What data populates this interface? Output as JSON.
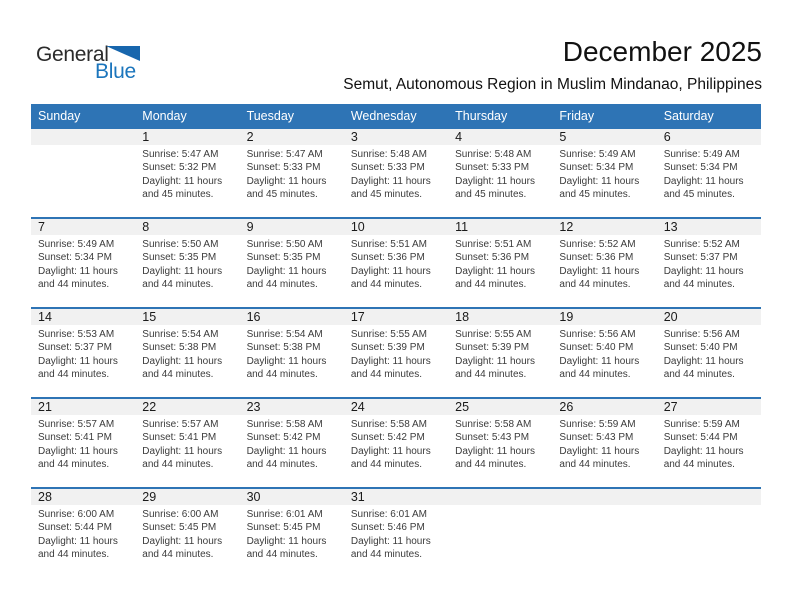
{
  "logo": {
    "text_top": "General",
    "text_bottom": "Blue"
  },
  "header": {
    "month_title": "December 2025",
    "location_subtitle": "Semut, Autonomous Region in Muslim Mindanao, Philippines"
  },
  "colors": {
    "header_blue": "#2e74b5",
    "row_divider_blue": "#2e74b5",
    "day_number_stripe_gray": "#f1f1f1",
    "logo_blue": "#1b75bc",
    "detail_text": "#3b3b3b"
  },
  "calendar": {
    "weekday_headers": [
      "Sunday",
      "Monday",
      "Tuesday",
      "Wednesday",
      "Thursday",
      "Friday",
      "Saturday"
    ],
    "weeks": [
      [
        {
          "day": ""
        },
        {
          "day": "1",
          "sunrise": "Sunrise: 5:47 AM",
          "sunset": "Sunset: 5:32 PM",
          "daylight": "Daylight: 11 hours and 45 minutes."
        },
        {
          "day": "2",
          "sunrise": "Sunrise: 5:47 AM",
          "sunset": "Sunset: 5:33 PM",
          "daylight": "Daylight: 11 hours and 45 minutes."
        },
        {
          "day": "3",
          "sunrise": "Sunrise: 5:48 AM",
          "sunset": "Sunset: 5:33 PM",
          "daylight": "Daylight: 11 hours and 45 minutes."
        },
        {
          "day": "4",
          "sunrise": "Sunrise: 5:48 AM",
          "sunset": "Sunset: 5:33 PM",
          "daylight": "Daylight: 11 hours and 45 minutes."
        },
        {
          "day": "5",
          "sunrise": "Sunrise: 5:49 AM",
          "sunset": "Sunset: 5:34 PM",
          "daylight": "Daylight: 11 hours and 45 minutes."
        },
        {
          "day": "6",
          "sunrise": "Sunrise: 5:49 AM",
          "sunset": "Sunset: 5:34 PM",
          "daylight": "Daylight: 11 hours and 45 minutes."
        }
      ],
      [
        {
          "day": "7",
          "sunrise": "Sunrise: 5:49 AM",
          "sunset": "Sunset: 5:34 PM",
          "daylight": "Daylight: 11 hours and 44 minutes."
        },
        {
          "day": "8",
          "sunrise": "Sunrise: 5:50 AM",
          "sunset": "Sunset: 5:35 PM",
          "daylight": "Daylight: 11 hours and 44 minutes."
        },
        {
          "day": "9",
          "sunrise": "Sunrise: 5:50 AM",
          "sunset": "Sunset: 5:35 PM",
          "daylight": "Daylight: 11 hours and 44 minutes."
        },
        {
          "day": "10",
          "sunrise": "Sunrise: 5:51 AM",
          "sunset": "Sunset: 5:36 PM",
          "daylight": "Daylight: 11 hours and 44 minutes."
        },
        {
          "day": "11",
          "sunrise": "Sunrise: 5:51 AM",
          "sunset": "Sunset: 5:36 PM",
          "daylight": "Daylight: 11 hours and 44 minutes."
        },
        {
          "day": "12",
          "sunrise": "Sunrise: 5:52 AM",
          "sunset": "Sunset: 5:36 PM",
          "daylight": "Daylight: 11 hours and 44 minutes."
        },
        {
          "day": "13",
          "sunrise": "Sunrise: 5:52 AM",
          "sunset": "Sunset: 5:37 PM",
          "daylight": "Daylight: 11 hours and 44 minutes."
        }
      ],
      [
        {
          "day": "14",
          "sunrise": "Sunrise: 5:53 AM",
          "sunset": "Sunset: 5:37 PM",
          "daylight": "Daylight: 11 hours and 44 minutes."
        },
        {
          "day": "15",
          "sunrise": "Sunrise: 5:54 AM",
          "sunset": "Sunset: 5:38 PM",
          "daylight": "Daylight: 11 hours and 44 minutes."
        },
        {
          "day": "16",
          "sunrise": "Sunrise: 5:54 AM",
          "sunset": "Sunset: 5:38 PM",
          "daylight": "Daylight: 11 hours and 44 minutes."
        },
        {
          "day": "17",
          "sunrise": "Sunrise: 5:55 AM",
          "sunset": "Sunset: 5:39 PM",
          "daylight": "Daylight: 11 hours and 44 minutes."
        },
        {
          "day": "18",
          "sunrise": "Sunrise: 5:55 AM",
          "sunset": "Sunset: 5:39 PM",
          "daylight": "Daylight: 11 hours and 44 minutes."
        },
        {
          "day": "19",
          "sunrise": "Sunrise: 5:56 AM",
          "sunset": "Sunset: 5:40 PM",
          "daylight": "Daylight: 11 hours and 44 minutes."
        },
        {
          "day": "20",
          "sunrise": "Sunrise: 5:56 AM",
          "sunset": "Sunset: 5:40 PM",
          "daylight": "Daylight: 11 hours and 44 minutes."
        }
      ],
      [
        {
          "day": "21",
          "sunrise": "Sunrise: 5:57 AM",
          "sunset": "Sunset: 5:41 PM",
          "daylight": "Daylight: 11 hours and 44 minutes."
        },
        {
          "day": "22",
          "sunrise": "Sunrise: 5:57 AM",
          "sunset": "Sunset: 5:41 PM",
          "daylight": "Daylight: 11 hours and 44 minutes."
        },
        {
          "day": "23",
          "sunrise": "Sunrise: 5:58 AM",
          "sunset": "Sunset: 5:42 PM",
          "daylight": "Daylight: 11 hours and 44 minutes."
        },
        {
          "day": "24",
          "sunrise": "Sunrise: 5:58 AM",
          "sunset": "Sunset: 5:42 PM",
          "daylight": "Daylight: 11 hours and 44 minutes."
        },
        {
          "day": "25",
          "sunrise": "Sunrise: 5:58 AM",
          "sunset": "Sunset: 5:43 PM",
          "daylight": "Daylight: 11 hours and 44 minutes."
        },
        {
          "day": "26",
          "sunrise": "Sunrise: 5:59 AM",
          "sunset": "Sunset: 5:43 PM",
          "daylight": "Daylight: 11 hours and 44 minutes."
        },
        {
          "day": "27",
          "sunrise": "Sunrise: 5:59 AM",
          "sunset": "Sunset: 5:44 PM",
          "daylight": "Daylight: 11 hours and 44 minutes."
        }
      ],
      [
        {
          "day": "28",
          "sunrise": "Sunrise: 6:00 AM",
          "sunset": "Sunset: 5:44 PM",
          "daylight": "Daylight: 11 hours and 44 minutes."
        },
        {
          "day": "29",
          "sunrise": "Sunrise: 6:00 AM",
          "sunset": "Sunset: 5:45 PM",
          "daylight": "Daylight: 11 hours and 44 minutes."
        },
        {
          "day": "30",
          "sunrise": "Sunrise: 6:01 AM",
          "sunset": "Sunset: 5:45 PM",
          "daylight": "Daylight: 11 hours and 44 minutes."
        },
        {
          "day": "31",
          "sunrise": "Sunrise: 6:01 AM",
          "sunset": "Sunset: 5:46 PM",
          "daylight": "Daylight: 11 hours and 44 minutes."
        },
        {
          "day": ""
        },
        {
          "day": ""
        },
        {
          "day": ""
        }
      ]
    ]
  }
}
